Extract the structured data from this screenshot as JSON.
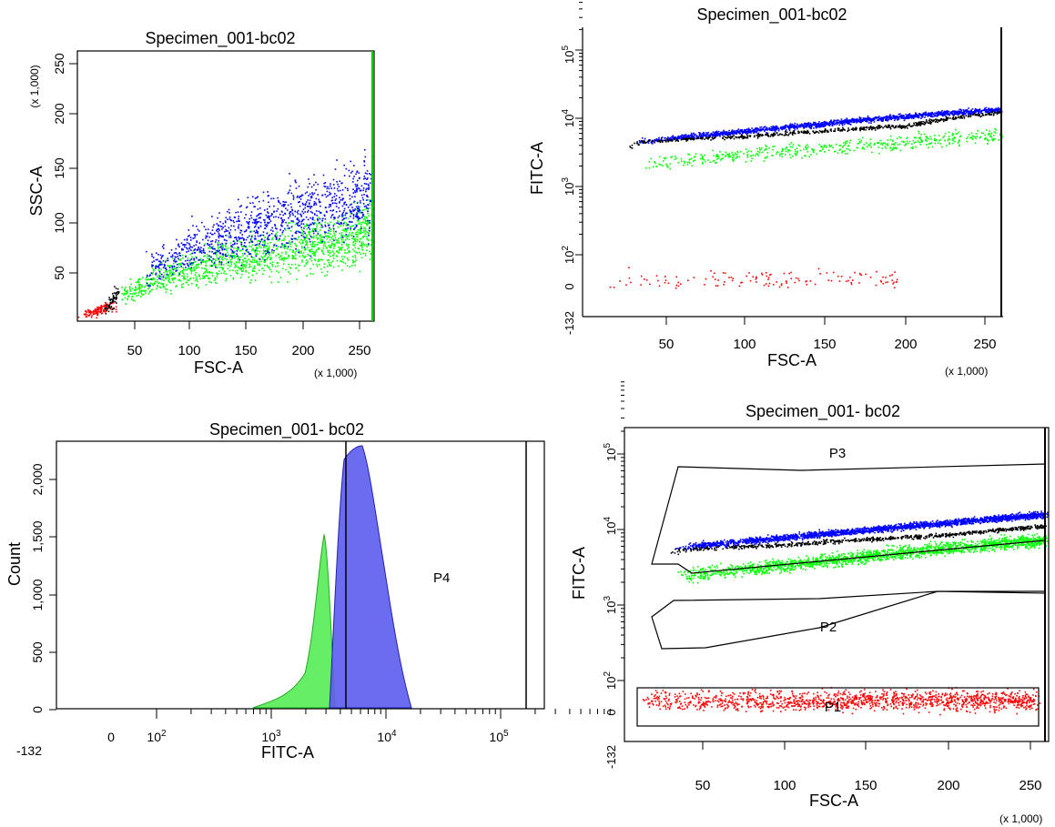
{
  "colors": {
    "black": "#000000",
    "blue": "#0000ff",
    "green": "#00ff00",
    "red": "#ff0000",
    "hist_blue": "#5c5cf0",
    "hist_green": "#66ee66"
  },
  "chart_data": [
    {
      "type": "scatter",
      "title": "Specimen_001-bc02",
      "xlabel": "FSC-A",
      "ylabel": "SSC-A",
      "x_scale_note": "(x 1,000)",
      "y_scale_note": "(x 1,000)",
      "xlim": [
        0,
        262
      ],
      "ylim": [
        0,
        262
      ],
      "xticks": [
        "50",
        "100",
        "150",
        "200",
        "250"
      ],
      "yticks": [
        "50",
        "100",
        "150",
        "200",
        "250"
      ],
      "series": [
        {
          "color": "green",
          "x": [
            40,
            60,
            80,
            100,
            130,
            160,
            200,
            240,
            260
          ],
          "y": [
            25,
            35,
            45,
            50,
            60,
            65,
            70,
            80,
            95
          ]
        },
        {
          "color": "blue",
          "x": [
            60,
            100,
            140,
            180,
            220,
            260
          ],
          "y": [
            50,
            70,
            85,
            100,
            110,
            125
          ]
        },
        {
          "color": "red",
          "x": [
            5,
            10,
            15,
            20,
            30
          ],
          "y": [
            5,
            10,
            8,
            12,
            15
          ]
        },
        {
          "color": "black",
          "x": [
            25,
            30,
            35
          ],
          "y": [
            10,
            20,
            30
          ]
        }
      ]
    },
    {
      "type": "scatter",
      "title": "Specimen_001-bc02",
      "xlabel": "FSC-A",
      "ylabel": "FITC-A",
      "x_scale_note": "(x 1,000)",
      "xlim": [
        0,
        262
      ],
      "y_scale": "biexponential",
      "xticks": [
        "50",
        "100",
        "150",
        "200",
        "250"
      ],
      "yticks": [
        "-132",
        "0",
        "10^2",
        "10^3",
        "10^4",
        "10^5"
      ],
      "series": [
        {
          "color": "blue",
          "x": [
            35,
            100,
            150,
            200,
            260
          ],
          "y": [
            2500,
            4000,
            5500,
            7500,
            10000
          ]
        },
        {
          "color": "black",
          "x": [
            30,
            35,
            100,
            200,
            260
          ],
          "y": [
            2000,
            2600,
            3200,
            5000,
            9000
          ]
        },
        {
          "color": "green",
          "x": [
            40,
            100,
            150,
            200,
            260
          ],
          "y": [
            1000,
            1500,
            2000,
            2500,
            3500
          ]
        },
        {
          "color": "red",
          "x": [
            10,
            50,
            100,
            150,
            200
          ],
          "y": [
            20,
            10,
            5,
            15,
            20
          ]
        }
      ]
    },
    {
      "type": "histogram",
      "title": "Specimen_001- bc02",
      "xlabel": "FITC-A",
      "ylabel": "Count",
      "x_scale": "biexponential",
      "xticks": [
        "-132",
        "0",
        "10^2",
        "10^3",
        "10^4",
        "10^5"
      ],
      "yticks": [
        "0",
        "500",
        "1,000",
        "1,500",
        "2,000"
      ],
      "ylim": [
        0,
        2300
      ],
      "gates": [
        {
          "label": "P4",
          "x_from": 4000,
          "x_to": 160000
        }
      ],
      "series": [
        {
          "color": "hist_green",
          "peak_x": 2600,
          "peak_count": 1650
        },
        {
          "color": "hist_blue",
          "peak_x": 5500,
          "peak_count": 2250
        }
      ]
    },
    {
      "type": "scatter",
      "title": "Specimen_001- bc02",
      "xlabel": "FSC-A",
      "ylabel": "FITC-A",
      "x_scale_note": "(x 1,000)",
      "xlim": [
        0,
        262
      ],
      "y_scale": "biexponential",
      "xticks": [
        "50",
        "100",
        "150",
        "200",
        "250"
      ],
      "yticks": [
        "-132",
        "0",
        "10^2",
        "10^3",
        "10^4",
        "10^5"
      ],
      "gates": [
        {
          "label": "P1",
          "shape": "rectangle",
          "x_from": 5,
          "x_to": 258,
          "y_from": -40,
          "y_to": 100
        },
        {
          "label": "P2",
          "shape": "polygon",
          "description_points": [
            [
              10,
              500
            ],
            [
              30,
              1600
            ],
            [
              195,
              1500
            ],
            [
              260,
              1400
            ],
            [
              260,
              1400
            ],
            [
              30,
              400
            ]
          ]
        },
        {
          "label": "P3",
          "shape": "polygon",
          "description_points": [
            [
              15,
              3500
            ],
            [
              35,
              80000
            ],
            [
              260,
              70000
            ],
            [
              260,
              3300
            ],
            [
              35,
              3000
            ]
          ]
        }
      ],
      "series": [
        {
          "color": "blue",
          "x": [
            35,
            100,
            150,
            200,
            260
          ],
          "y": [
            3000,
            4500,
            6000,
            8000,
            11000
          ]
        },
        {
          "color": "black",
          "x": [
            30,
            35,
            100,
            200,
            260
          ],
          "y": [
            2200,
            2800,
            3400,
            5000,
            7000
          ]
        },
        {
          "color": "green",
          "x": [
            35,
            100,
            150,
            200,
            260
          ],
          "y": [
            1000,
            1500,
            2200,
            3000,
            4000
          ]
        },
        {
          "color": "red",
          "x": [
            10,
            60,
            110,
            160,
            255
          ],
          "y": [
            10,
            5,
            0,
            10,
            15
          ]
        }
      ]
    }
  ]
}
